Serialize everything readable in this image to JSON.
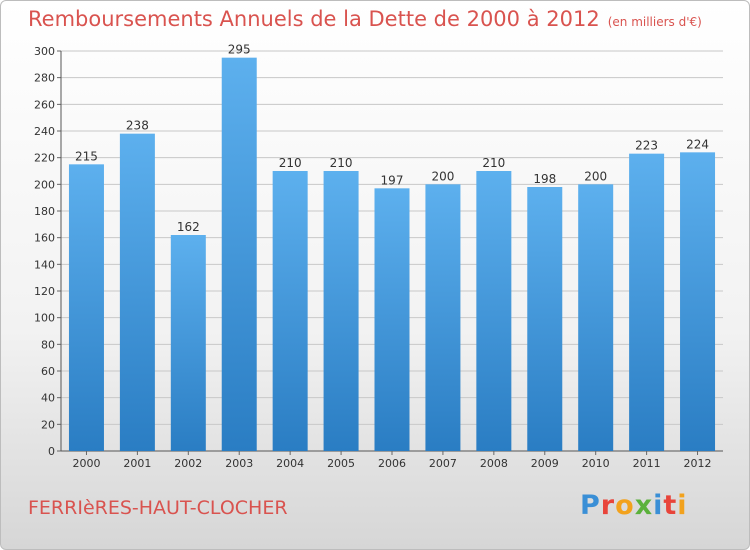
{
  "header": {
    "title": "Remboursements Annuels de la Dette de 2000 à 2012",
    "unit": "(en milliers d'€)"
  },
  "footer": {
    "commune": "FERRIèRES-HAUT-CLOCHER",
    "logo_text": "Proxiti",
    "logo_colors": [
      "#3a8fd6",
      "#e8443a",
      "#f2a21d",
      "#5bb13b",
      "#3a8fd6",
      "#e8443a",
      "#f2a21d"
    ]
  },
  "colors": {
    "bar_top": "#5db0ee",
    "bar_bottom": "#2a7dc3",
    "grid": "#c8c8c8",
    "title": "#d9534f"
  },
  "chart_data": {
    "type": "bar",
    "categories": [
      "2000",
      "2001",
      "2002",
      "2003",
      "2004",
      "2005",
      "2006",
      "2007",
      "2008",
      "2009",
      "2010",
      "2011",
      "2012"
    ],
    "values": [
      215,
      238,
      162,
      295,
      210,
      210,
      197,
      200,
      210,
      198,
      200,
      223,
      224
    ],
    "title": "Remboursements Annuels de la Dette de 2000 à 2012",
    "ylim": [
      0,
      300
    ],
    "yticks": [
      0,
      20,
      40,
      60,
      80,
      100,
      120,
      140,
      160,
      180,
      200,
      220,
      240,
      260,
      280,
      300
    ],
    "grid": true
  }
}
